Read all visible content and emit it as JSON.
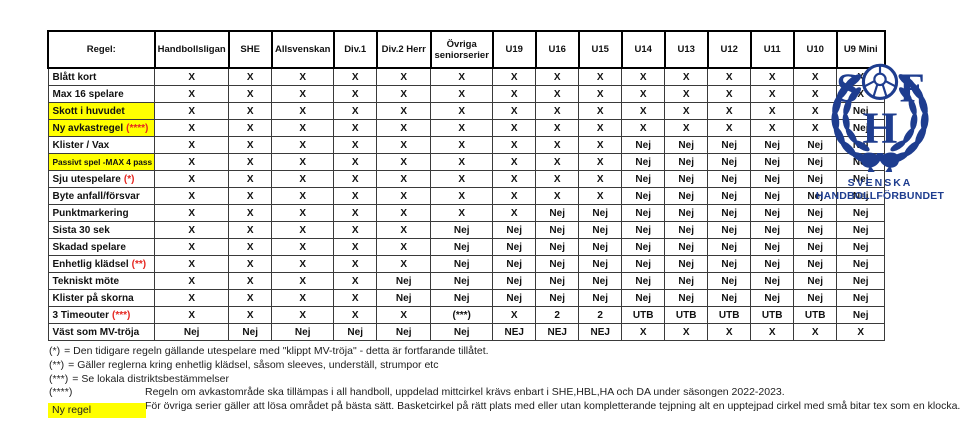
{
  "colors": {
    "x_green": "#4e7c31",
    "nej_red": "#e5261f",
    "highlight_yellow": "#ffff00",
    "logo_blue": "#1e3d8f"
  },
  "table": {
    "corner_label": "Regel:",
    "columns": [
      "Handbollsligan",
      "SHE",
      "Allsvenskan",
      "Div.1",
      "Div.2 Herr",
      "Övriga seniorserier",
      "U19",
      "U16",
      "U15",
      "U14",
      "U13",
      "U12",
      "U11",
      "U10",
      "U9 Mini"
    ],
    "rows": [
      {
        "label": "Blått kort",
        "suffix": "",
        "highlight": false,
        "values": [
          "X",
          "X",
          "X",
          "X",
          "X",
          "X",
          "X",
          "X",
          "X",
          "X",
          "X",
          "X",
          "X",
          "X",
          "X"
        ]
      },
      {
        "label": "Max 16 spelare",
        "suffix": "",
        "highlight": false,
        "values": [
          "X",
          "X",
          "X",
          "X",
          "X",
          "X",
          "X",
          "X",
          "X",
          "X",
          "X",
          "X",
          "X",
          "X",
          "X"
        ]
      },
      {
        "label": "Skott i huvudet",
        "suffix": "",
        "highlight": true,
        "values": [
          "X",
          "X",
          "X",
          "X",
          "X",
          "X",
          "X",
          "X",
          "X",
          "X",
          "X",
          "X",
          "X",
          "X",
          "Nej"
        ]
      },
      {
        "label": "Ny avkastregel",
        "suffix": "(****)",
        "highlight": true,
        "values": [
          "X",
          "X",
          "X",
          "X",
          "X",
          "X",
          "X",
          "X",
          "X",
          "X",
          "X",
          "X",
          "X",
          "X",
          "Nej"
        ]
      },
      {
        "label": "Klister / Vax",
        "suffix": "",
        "highlight": false,
        "values": [
          "X",
          "X",
          "X",
          "X",
          "X",
          "X",
          "X",
          "X",
          "X",
          "Nej",
          "Nej",
          "Nej",
          "Nej",
          "Nej",
          "Nej"
        ]
      },
      {
        "label": "Passivt spel -MAX 4  pass",
        "suffix": "",
        "highlight": true,
        "values": [
          "X",
          "X",
          "X",
          "X",
          "X",
          "X",
          "X",
          "X",
          "X",
          "Nej",
          "Nej",
          "Nej",
          "Nej",
          "Nej",
          "Nej"
        ]
      },
      {
        "label": "Sju utespelare",
        "suffix": "(*)",
        "highlight": false,
        "values": [
          "X",
          "X",
          "X",
          "X",
          "X",
          "X",
          "X",
          "X",
          "X",
          "Nej",
          "Nej",
          "Nej",
          "Nej",
          "Nej",
          "Nej"
        ]
      },
      {
        "label": "Byte anfall/försvar",
        "suffix": "",
        "highlight": false,
        "values": [
          "X",
          "X",
          "X",
          "X",
          "X",
          "X",
          "X",
          "X",
          "X",
          "Nej",
          "Nej",
          "Nej",
          "Nej",
          "Nej",
          "Nej"
        ]
      },
      {
        "label": "Punktmarkering",
        "suffix": "",
        "highlight": false,
        "values": [
          "X",
          "X",
          "X",
          "X",
          "X",
          "X",
          "X",
          "Nej",
          "Nej",
          "Nej",
          "Nej",
          "Nej",
          "Nej",
          "Nej",
          "Nej"
        ]
      },
      {
        "label": "Sista 30 sek",
        "suffix": "",
        "highlight": false,
        "values": [
          "X",
          "X",
          "X",
          "X",
          "X",
          "Nej",
          "Nej",
          "Nej",
          "Nej",
          "Nej",
          "Nej",
          "Nej",
          "Nej",
          "Nej",
          "Nej"
        ]
      },
      {
        "label": "Skadad spelare",
        "suffix": "",
        "highlight": false,
        "values": [
          "X",
          "X",
          "X",
          "X",
          "X",
          "Nej",
          "Nej",
          "Nej",
          "Nej",
          "Nej",
          "Nej",
          "Nej",
          "Nej",
          "Nej",
          "Nej"
        ]
      },
      {
        "label": "Enhetlig klädsel",
        "suffix": "(**)",
        "highlight": false,
        "values": [
          "X",
          "X",
          "X",
          "X",
          "X",
          "Nej",
          "Nej",
          "Nej",
          "Nej",
          "Nej",
          "Nej",
          "Nej",
          "Nej",
          "Nej",
          "Nej"
        ]
      },
      {
        "label": "Tekniskt möte",
        "suffix": "",
        "highlight": false,
        "values": [
          "X",
          "X",
          "X",
          "X",
          "Nej",
          "Nej",
          "Nej",
          "Nej",
          "Nej",
          "Nej",
          "Nej",
          "Nej",
          "Nej",
          "Nej",
          "Nej"
        ]
      },
      {
        "label": "Klister på skorna",
        "suffix": "",
        "highlight": false,
        "values": [
          "X",
          "X",
          "X",
          "X",
          "Nej",
          "Nej",
          "Nej",
          "Nej",
          "Nej",
          "Nej",
          "Nej",
          "Nej",
          "Nej",
          "Nej",
          "Nej"
        ]
      },
      {
        "label": "3 Timeouter",
        "suffix": "(***)",
        "highlight": false,
        "values": [
          "X",
          "X",
          "X",
          "X",
          "X",
          "(***)",
          "X",
          "2",
          "2",
          "UTB",
          "UTB",
          "UTB",
          "UTB",
          "UTB",
          "Nej"
        ]
      },
      {
        "label": "Väst som MV-tröja",
        "suffix": "",
        "highlight": false,
        "values": [
          "Nej",
          "Nej",
          "Nej",
          "Nej",
          "Nej",
          "Nej",
          "NEJ",
          "NEJ",
          "NEJ",
          "X",
          "X",
          "X",
          "X",
          "X",
          "X"
        ]
      }
    ]
  },
  "footnotes": {
    "lines": [
      {
        "prefix": "(*)",
        "text": "= Den tidigare regeln gällande utespelare med \"klippt MV-tröja\" - detta är fortfarande tillåtet."
      },
      {
        "prefix": "(**)",
        "text": "= Gäller reglerna kring enhetlig klädsel, såsom sleeves, underställ, strumpor etc"
      },
      {
        "prefix": "(***)",
        "text": "= Se lokala distriktsbestämmelser"
      },
      {
        "prefix": "(****)",
        "text": "Regeln om avkastområde ska tillämpas i all handboll, uppdelad mittcirkel krävs enbart i SHE,HBL,HA och DA under säsongen 2022-2023."
      },
      {
        "prefix": "",
        "text": "För övriga serier gäller att lösa området på bästa sätt. Basketcirkel på rätt plats med eller utan kompletterande tejpning alt en upptejpad cirkel med små bitar tex som en klocka."
      }
    ],
    "new_rule_label": "Ny regel"
  },
  "logo": {
    "letters": {
      "s": "S",
      "f": "F",
      "h": "H"
    },
    "org_line1": "SVENSKA",
    "org_line2": "HANDBOLLFÖRBUNDET"
  }
}
